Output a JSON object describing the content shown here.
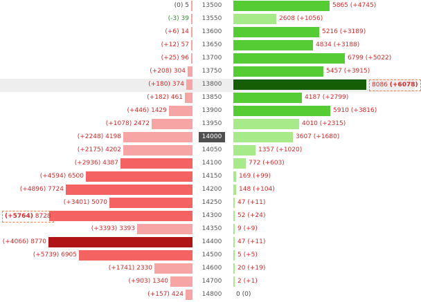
{
  "colors": {
    "left_text": "#d42a2a",
    "left_text_neutral": "#444444",
    "left_text_negative": "#2e8b2e",
    "right_text": "#d42a2a",
    "left_bar_light": "#f7a4a4",
    "left_bar_mid": "#f56262",
    "left_bar_dark": "#b01414",
    "right_bar_light": "#a6ea8a",
    "right_bar_mid": "#55cc33",
    "right_bar_dark": "#165e06",
    "highlight_row_bg": "#eeeeee",
    "active_strike_bg": "#4f4f4f",
    "boxed_border": "#ff7a3d"
  },
  "chart_data": {
    "type": "bar",
    "left_max": 8770,
    "right_max": 8086,
    "active_strike": "14000",
    "highlight_strike": "13800",
    "rows": [
      {
        "strike": "13500",
        "left": {
          "value": 5,
          "change": "(0)",
          "value_text": "5",
          "tone": "light",
          "text_tone": "neutral"
        },
        "right": {
          "value": 5865,
          "change": "(+4745)",
          "value_text": "5865",
          "tone": "mid"
        }
      },
      {
        "strike": "13550",
        "left": {
          "value": 39,
          "change": "(-3)",
          "value_text": "39",
          "tone": "light",
          "text_tone": "negative"
        },
        "right": {
          "value": 2608,
          "change": "(+1056)",
          "value_text": "2608",
          "tone": "light"
        }
      },
      {
        "strike": "13600",
        "left": {
          "value": 14,
          "change": "(+6)",
          "value_text": "14",
          "tone": "light"
        },
        "right": {
          "value": 5216,
          "change": "(+3189)",
          "value_text": "5216",
          "tone": "mid"
        }
      },
      {
        "strike": "13650",
        "left": {
          "value": 57,
          "change": "(+12)",
          "value_text": "57",
          "tone": "light"
        },
        "right": {
          "value": 4834,
          "change": "(+3188)",
          "value_text": "4834",
          "tone": "mid"
        }
      },
      {
        "strike": "13700",
        "left": {
          "value": 96,
          "change": "(+25)",
          "value_text": "96",
          "tone": "light"
        },
        "right": {
          "value": 6799,
          "change": "(+5022)",
          "value_text": "6799",
          "tone": "mid"
        }
      },
      {
        "strike": "13750",
        "left": {
          "value": 304,
          "change": "(+208)",
          "value_text": "304",
          "tone": "light"
        },
        "right": {
          "value": 5457,
          "change": "(+3915)",
          "value_text": "5457",
          "tone": "mid"
        }
      },
      {
        "strike": "13800",
        "left": {
          "value": 374,
          "change": "(+180)",
          "value_text": "374",
          "tone": "light"
        },
        "right": {
          "value": 8086,
          "change": "(+6078)",
          "value_text": "8086",
          "tone": "dark",
          "boxed": true
        }
      },
      {
        "strike": "13850",
        "left": {
          "value": 461,
          "change": "(+182)",
          "value_text": "461",
          "tone": "light"
        },
        "right": {
          "value": 4187,
          "change": "(+2799)",
          "value_text": "4187",
          "tone": "mid"
        }
      },
      {
        "strike": "13900",
        "left": {
          "value": 1429,
          "change": "(+446)",
          "value_text": "1429",
          "tone": "light"
        },
        "right": {
          "value": 5910,
          "change": "(+3816)",
          "value_text": "5910",
          "tone": "mid"
        }
      },
      {
        "strike": "13950",
        "left": {
          "value": 2472,
          "change": "(+1078)",
          "value_text": "2472",
          "tone": "light"
        },
        "right": {
          "value": 4010,
          "change": "(+2315)",
          "value_text": "4010",
          "tone": "light"
        }
      },
      {
        "strike": "14000",
        "left": {
          "value": 4198,
          "change": "(+2248)",
          "value_text": "4198",
          "tone": "light"
        },
        "right": {
          "value": 3607,
          "change": "(+1680)",
          "value_text": "3607",
          "tone": "light"
        }
      },
      {
        "strike": "14050",
        "left": {
          "value": 4202,
          "change": "(+2175)",
          "value_text": "4202",
          "tone": "light"
        },
        "right": {
          "value": 1357,
          "change": "(+1020)",
          "value_text": "1357",
          "tone": "light"
        }
      },
      {
        "strike": "14100",
        "left": {
          "value": 4387,
          "change": "(+2936)",
          "value_text": "4387",
          "tone": "mid"
        },
        "right": {
          "value": 772,
          "change": "(+603)",
          "value_text": "772",
          "tone": "light"
        }
      },
      {
        "strike": "14150",
        "left": {
          "value": 6500,
          "change": "(+4594)",
          "value_text": "6500",
          "tone": "mid"
        },
        "right": {
          "value": 169,
          "change": "(+99)",
          "value_text": "169",
          "tone": "light"
        }
      },
      {
        "strike": "14200",
        "left": {
          "value": 7724,
          "change": "(+4896)",
          "value_text": "7724",
          "tone": "mid"
        },
        "right": {
          "value": 148,
          "change": "(+104)",
          "value_text": "148",
          "tone": "light"
        }
      },
      {
        "strike": "14250",
        "left": {
          "value": 5070,
          "change": "(+3401)",
          "value_text": "5070",
          "tone": "mid"
        },
        "right": {
          "value": 47,
          "change": "(+11)",
          "value_text": "47",
          "tone": "light"
        }
      },
      {
        "strike": "14300",
        "left": {
          "value": 8728,
          "change": "(+5764)",
          "value_text": "8728",
          "tone": "mid",
          "boxed": true
        },
        "right": {
          "value": 52,
          "change": "(+24)",
          "value_text": "52",
          "tone": "light"
        }
      },
      {
        "strike": "14350",
        "left": {
          "value": 3393,
          "change": "(+3393)",
          "value_text": "3393",
          "tone": "light"
        },
        "right": {
          "value": 9,
          "change": "(+9)",
          "value_text": "9",
          "tone": "light"
        }
      },
      {
        "strike": "14400",
        "left": {
          "value": 8770,
          "change": "(+4066)",
          "value_text": "8770",
          "tone": "dark"
        },
        "right": {
          "value": 47,
          "change": "(+11)",
          "value_text": "47",
          "tone": "light"
        }
      },
      {
        "strike": "14500",
        "left": {
          "value": 6905,
          "change": "(+5739)",
          "value_text": "6905",
          "tone": "mid"
        },
        "right": {
          "value": 5,
          "change": "(+5)",
          "value_text": "5",
          "tone": "light"
        }
      },
      {
        "strike": "14600",
        "left": {
          "value": 2330,
          "change": "(+1741)",
          "value_text": "2330",
          "tone": "light"
        },
        "right": {
          "value": 20,
          "change": "(+19)",
          "value_text": "20",
          "tone": "light"
        }
      },
      {
        "strike": "14700",
        "left": {
          "value": 1340,
          "change": "(+903)",
          "value_text": "1340",
          "tone": "light"
        },
        "right": {
          "value": 2,
          "change": "(+1)",
          "value_text": "2",
          "tone": "light"
        }
      },
      {
        "strike": "14800",
        "left": {
          "value": 424,
          "change": "(+157)",
          "value_text": "424",
          "tone": "light"
        },
        "right": {
          "value": 0,
          "change": "(0)",
          "value_text": "0",
          "tone": "light"
        }
      }
    ]
  }
}
